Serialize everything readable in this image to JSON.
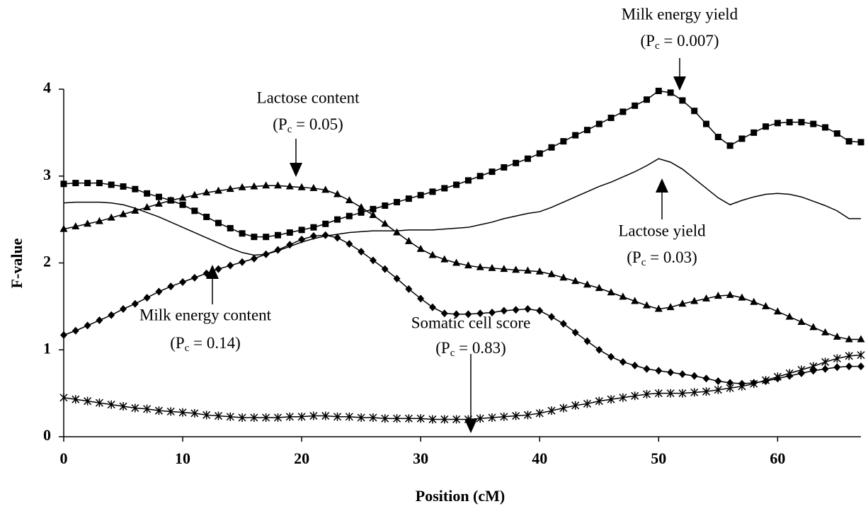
{
  "chart_data": {
    "type": "line",
    "x_label": "Position (cM)",
    "y_label": "F-value",
    "xlim": [
      0,
      67
    ],
    "ylim": [
      0,
      4
    ],
    "xticks": [
      0,
      10,
      20,
      30,
      40,
      50,
      60
    ],
    "yticks": [
      0,
      1,
      2,
      3,
      4
    ],
    "x": [
      0,
      1,
      2,
      3,
      4,
      5,
      6,
      7,
      8,
      9,
      10,
      11,
      12,
      13,
      14,
      15,
      16,
      17,
      18,
      19,
      20,
      21,
      22,
      23,
      24,
      25,
      26,
      27,
      28,
      29,
      30,
      31,
      32,
      33,
      34,
      35,
      36,
      37,
      38,
      39,
      40,
      41,
      42,
      43,
      44,
      45,
      46,
      47,
      48,
      49,
      50,
      51,
      52,
      53,
      54,
      55,
      56,
      57,
      58,
      59,
      60,
      61,
      62,
      63,
      64,
      65,
      66,
      67
    ],
    "series": [
      {
        "name": "Milk energy yield",
        "pc": [
          "(P",
          "c",
          " = 0.007)"
        ],
        "color": "#000000",
        "marker": "square",
        "values": [
          2.91,
          2.92,
          2.92,
          2.92,
          2.9,
          2.88,
          2.85,
          2.8,
          2.76,
          2.72,
          2.67,
          2.6,
          2.53,
          2.46,
          2.4,
          2.34,
          2.3,
          2.3,
          2.32,
          2.35,
          2.38,
          2.41,
          2.45,
          2.5,
          2.54,
          2.58,
          2.62,
          2.66,
          2.7,
          2.74,
          2.78,
          2.82,
          2.86,
          2.9,
          2.95,
          3.0,
          3.05,
          3.1,
          3.15,
          3.2,
          3.26,
          3.33,
          3.4,
          3.47,
          3.53,
          3.6,
          3.67,
          3.74,
          3.81,
          3.88,
          3.98,
          3.96,
          3.87,
          3.75,
          3.6,
          3.45,
          3.35,
          3.43,
          3.5,
          3.57,
          3.61,
          3.62,
          3.62,
          3.6,
          3.56,
          3.49,
          3.4,
          3.39
        ]
      },
      {
        "name": "Lactose content",
        "pc": [
          "(P",
          "c",
          " = 0.05)"
        ],
        "color": "#000000",
        "marker": "triangle",
        "values": [
          2.39,
          2.42,
          2.45,
          2.48,
          2.52,
          2.56,
          2.6,
          2.64,
          2.68,
          2.72,
          2.75,
          2.78,
          2.81,
          2.83,
          2.85,
          2.87,
          2.88,
          2.89,
          2.89,
          2.88,
          2.87,
          2.86,
          2.84,
          2.79,
          2.72,
          2.64,
          2.55,
          2.45,
          2.35,
          2.25,
          2.16,
          2.09,
          2.04,
          2.0,
          1.97,
          1.95,
          1.94,
          1.93,
          1.92,
          1.91,
          1.9,
          1.87,
          1.83,
          1.79,
          1.75,
          1.71,
          1.66,
          1.61,
          1.56,
          1.51,
          1.47,
          1.49,
          1.53,
          1.56,
          1.59,
          1.62,
          1.63,
          1.6,
          1.55,
          1.5,
          1.44,
          1.38,
          1.32,
          1.26,
          1.2,
          1.15,
          1.12,
          1.12
        ]
      },
      {
        "name": "Lactose yield",
        "pc": [
          "(P",
          "c",
          " = 0.03)"
        ],
        "color": "#000000",
        "marker": "none",
        "values": [
          2.69,
          2.7,
          2.7,
          2.7,
          2.69,
          2.67,
          2.63,
          2.58,
          2.53,
          2.47,
          2.41,
          2.35,
          2.29,
          2.23,
          2.17,
          2.12,
          2.09,
          2.1,
          2.14,
          2.19,
          2.24,
          2.28,
          2.31,
          2.33,
          2.35,
          2.36,
          2.37,
          2.37,
          2.37,
          2.38,
          2.38,
          2.38,
          2.39,
          2.4,
          2.41,
          2.44,
          2.47,
          2.51,
          2.54,
          2.57,
          2.59,
          2.64,
          2.7,
          2.76,
          2.82,
          2.88,
          2.93,
          2.99,
          3.05,
          3.12,
          3.2,
          3.16,
          3.08,
          2.97,
          2.86,
          2.75,
          2.67,
          2.72,
          2.76,
          2.79,
          2.8,
          2.79,
          2.76,
          2.71,
          2.66,
          2.6,
          2.51,
          2.51
        ]
      },
      {
        "name": "Milk energy content",
        "pc": [
          "(P",
          "c",
          " = 0.14)"
        ],
        "color": "#000000",
        "marker": "diamond",
        "values": [
          1.17,
          1.22,
          1.28,
          1.34,
          1.4,
          1.47,
          1.53,
          1.6,
          1.67,
          1.73,
          1.78,
          1.83,
          1.88,
          1.93,
          1.97,
          2.01,
          2.05,
          2.1,
          2.15,
          2.21,
          2.27,
          2.31,
          2.32,
          2.29,
          2.22,
          2.13,
          2.03,
          1.93,
          1.82,
          1.7,
          1.59,
          1.49,
          1.42,
          1.41,
          1.41,
          1.42,
          1.43,
          1.45,
          1.46,
          1.47,
          1.45,
          1.38,
          1.3,
          1.2,
          1.1,
          1.0,
          0.92,
          0.86,
          0.82,
          0.78,
          0.76,
          0.74,
          0.72,
          0.7,
          0.67,
          0.64,
          0.62,
          0.61,
          0.62,
          0.64,
          0.67,
          0.7,
          0.73,
          0.76,
          0.78,
          0.8,
          0.81,
          0.81
        ]
      },
      {
        "name": "Somatic cell score",
        "pc": [
          "(P",
          "c",
          " = 0.83)"
        ],
        "color": "#000000",
        "marker": "star",
        "values": [
          0.45,
          0.43,
          0.41,
          0.39,
          0.37,
          0.35,
          0.33,
          0.32,
          0.3,
          0.29,
          0.28,
          0.27,
          0.25,
          0.24,
          0.23,
          0.22,
          0.22,
          0.22,
          0.22,
          0.23,
          0.23,
          0.24,
          0.24,
          0.23,
          0.23,
          0.22,
          0.22,
          0.21,
          0.21,
          0.21,
          0.21,
          0.2,
          0.2,
          0.2,
          0.2,
          0.21,
          0.22,
          0.23,
          0.24,
          0.25,
          0.27,
          0.3,
          0.33,
          0.36,
          0.38,
          0.41,
          0.43,
          0.45,
          0.47,
          0.49,
          0.5,
          0.5,
          0.5,
          0.51,
          0.52,
          0.54,
          0.56,
          0.58,
          0.61,
          0.65,
          0.69,
          0.73,
          0.77,
          0.81,
          0.86,
          0.9,
          0.93,
          0.94
        ]
      }
    ]
  }
}
